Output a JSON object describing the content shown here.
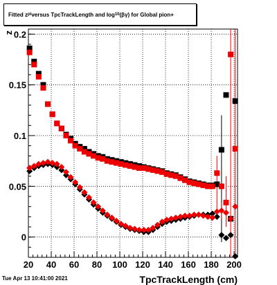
{
  "title": {
    "pre": "Fitted  z",
    "sub1": "pi",
    "mid": "  versus TpcTrackLength and log",
    "sub2": "10",
    "post": "(βγ) for Global pion+"
  },
  "footer": "Tue Apr 13 10:41:00 2021",
  "chart_data": {
    "type": "scatter",
    "title": "Fitted z_pi versus TpcTrackLength and log10(βγ) for Global pion+",
    "xlabel": "TpcTrackLength (cm)",
    "ylabel": "z",
    "xlim": [
      20,
      203
    ],
    "ylim": [
      -0.02,
      0.205
    ],
    "xticks": [
      20,
      40,
      60,
      80,
      100,
      120,
      140,
      160,
      180,
      200
    ],
    "yticks": [
      0,
      0.05,
      0.1,
      0.15,
      0.2
    ],
    "ytick_labels": [
      "0",
      "0.05",
      "0.1",
      "0.15",
      "0.2"
    ],
    "grid": true,
    "colors": {
      "black": "#000000",
      "red": "#ee0000"
    },
    "series": [
      {
        "color": "black",
        "marker": "square",
        "x": [
          21,
          25,
          29,
          33,
          37,
          41,
          45,
          49,
          53,
          57,
          61,
          65,
          69,
          73,
          77,
          81,
          85,
          89,
          93,
          97,
          101,
          105,
          109,
          113,
          117,
          121,
          125,
          129,
          133,
          137,
          141,
          145,
          149,
          153,
          157,
          161,
          165,
          169,
          173,
          177,
          181,
          185,
          189,
          193,
          197,
          201
        ],
        "y": [
          0.186,
          0.173,
          0.161,
          0.15,
          0.131,
          0.121,
          0.112,
          0.107,
          0.101,
          0.097,
          0.092,
          0.089,
          0.087,
          0.084,
          0.082,
          0.08,
          0.079,
          0.077,
          0.076,
          0.075,
          0.074,
          0.073,
          0.072,
          0.071,
          0.07,
          0.069,
          0.068,
          0.067,
          0.066,
          0.065,
          0.063,
          0.062,
          0.061,
          0.059,
          0.057,
          0.055,
          0.054,
          0.053,
          0.052,
          0.051,
          0.051,
          0.052,
          0.086,
          0.14,
          0.018,
          0.134
        ]
      },
      {
        "color": "red",
        "marker": "square",
        "x": [
          21,
          25,
          29,
          33,
          37,
          41,
          45,
          49,
          53,
          57,
          61,
          65,
          69,
          73,
          77,
          81,
          85,
          89,
          93,
          97,
          101,
          105,
          109,
          113,
          117,
          121,
          125,
          129,
          133,
          137,
          141,
          145,
          149,
          153,
          157,
          161,
          165,
          169,
          173,
          177,
          181,
          185,
          189,
          193,
          197,
          201
        ],
        "y": [
          0.182,
          0.17,
          0.158,
          0.147,
          0.131,
          0.121,
          0.112,
          0.107,
          0.1,
          0.095,
          0.09,
          0.087,
          0.084,
          0.082,
          0.08,
          0.078,
          0.077,
          0.075,
          0.074,
          0.073,
          0.072,
          0.071,
          0.07,
          0.069,
          0.068,
          0.068,
          0.067,
          0.066,
          0.065,
          0.064,
          0.062,
          0.061,
          0.06,
          0.058,
          0.056,
          0.054,
          0.053,
          0.052,
          0.051,
          0.05,
          0.05,
          0.063,
          0.05,
          0.034,
          0.18,
          0.087
        ]
      },
      {
        "color": "black",
        "marker": "circle",
        "x": [
          21,
          25,
          29,
          33,
          37,
          41,
          45,
          49,
          53,
          57,
          61,
          65,
          69,
          73,
          77,
          81,
          85,
          89,
          93,
          97,
          101,
          105,
          109,
          113,
          117,
          121,
          125,
          129,
          133,
          137,
          141,
          145,
          149,
          153,
          157,
          161,
          165,
          169,
          173,
          177,
          181,
          185,
          189,
          193,
          197,
          201
        ],
        "y": [
          0.065,
          0.068,
          0.07,
          0.071,
          0.072,
          0.071,
          0.069,
          0.066,
          0.061,
          0.057,
          0.052,
          0.047,
          0.042,
          0.037,
          0.032,
          0.028,
          0.024,
          0.021,
          0.018,
          0.015,
          0.012,
          0.01,
          0.008,
          0.007,
          0.006,
          0.005,
          0.005,
          0.007,
          0.01,
          0.013,
          0.015,
          0.016,
          0.017,
          0.018,
          0.019,
          0.02,
          0.021,
          0.022,
          0.022,
          0.022,
          0.023,
          0.02,
          0.002,
          -0.001,
          0.002,
          -0.019
        ]
      },
      {
        "color": "red",
        "marker": "circle",
        "x": [
          21,
          25,
          29,
          33,
          37,
          41,
          45,
          49,
          53,
          57,
          61,
          65,
          69,
          73,
          77,
          81,
          85,
          89,
          93,
          97,
          101,
          105,
          109,
          113,
          117,
          121,
          125,
          129,
          133,
          137,
          141,
          145,
          149,
          153,
          157,
          161,
          165,
          169,
          173,
          177,
          181,
          185,
          189,
          193,
          197,
          201
        ],
        "y": [
          0.068,
          0.07,
          0.072,
          0.073,
          0.074,
          0.073,
          0.072,
          0.069,
          0.064,
          0.059,
          0.054,
          0.049,
          0.044,
          0.039,
          0.034,
          0.03,
          0.026,
          0.022,
          0.019,
          0.016,
          0.013,
          0.011,
          0.009,
          0.008,
          0.007,
          0.007,
          0.007,
          0.009,
          0.012,
          0.015,
          0.017,
          0.018,
          0.019,
          0.02,
          0.021,
          0.021,
          0.022,
          0.022,
          0.021,
          0.02,
          0.019,
          0.025,
          0.026,
          0.024,
          0.018,
          0.03
        ]
      }
    ]
  }
}
